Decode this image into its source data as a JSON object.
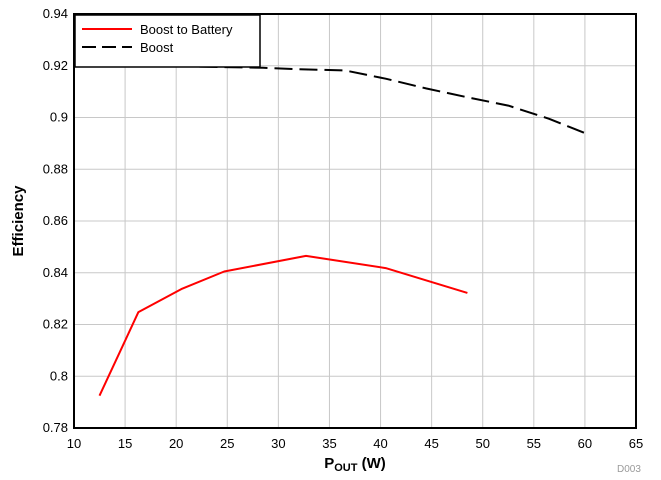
{
  "chart_data": {
    "type": "line",
    "title": "",
    "xlabel_main": "P",
    "xlabel_sub": "OUT",
    "xlabel_unit": " (W)",
    "ylabel": "Efficiency",
    "xlim": [
      10,
      65
    ],
    "ylim": [
      0.78,
      0.94
    ],
    "xticks": [
      10,
      15,
      20,
      25,
      30,
      35,
      40,
      45,
      50,
      55,
      60,
      65
    ],
    "yticks": [
      0.78,
      0.8,
      0.82,
      0.84,
      0.86,
      0.88,
      0.9,
      0.92,
      0.94
    ],
    "ytick_labels": [
      "0.78",
      "0.8",
      "0.82",
      "0.84",
      "0.86",
      "0.88",
      "0.9",
      "0.92",
      "0.94"
    ],
    "grid": true,
    "legend_position": "top-left",
    "series": [
      {
        "name": "Boost to Battery",
        "color": "#ff0000",
        "dash": "solid",
        "x": [
          12.5,
          16.3,
          20.5,
          24.7,
          32.7,
          40.5,
          48.5
        ],
        "y": [
          0.7925,
          0.8248,
          0.8337,
          0.8405,
          0.8465,
          0.8418,
          0.8322
        ]
      },
      {
        "name": "Boost",
        "color": "#000000",
        "dash": "dashed",
        "x": [
          12.5,
          20.5,
          28.5,
          32.5,
          36.5,
          40.5,
          44.5,
          48.5,
          52.5,
          56.5,
          60.3
        ],
        "y": [
          0.92,
          0.9198,
          0.9192,
          0.9186,
          0.9182,
          0.915,
          0.9112,
          0.9078,
          0.9046,
          0.8995,
          0.8935
        ]
      }
    ]
  },
  "figure_code": "D003"
}
